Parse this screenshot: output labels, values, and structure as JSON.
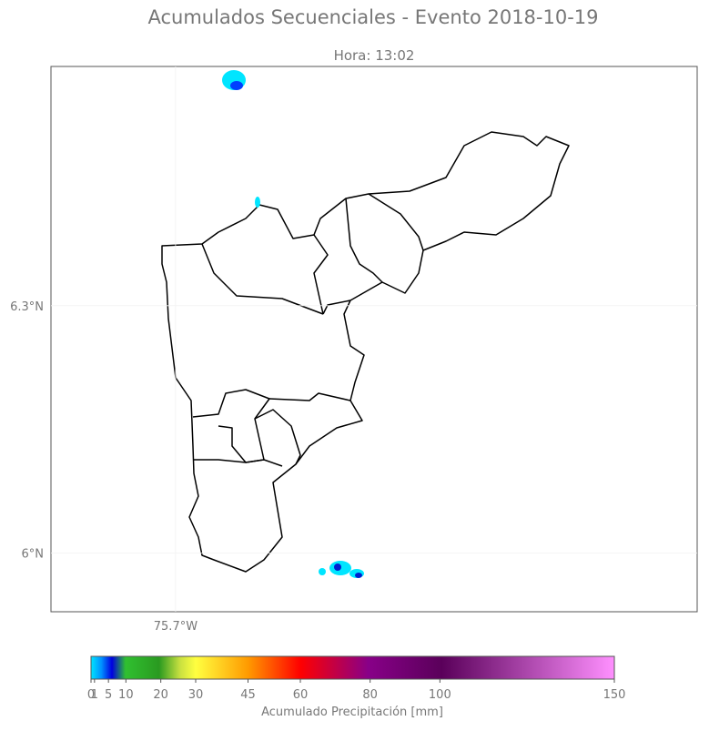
{
  "title": "Acumulados Secuenciales - Evento 2018-10-19",
  "subtitle": "Hora: 13:02",
  "map": {
    "xlim": [
      -75.851,
      -75.068
    ],
    "ylim": [
      5.929,
      6.59
    ],
    "xticks": [
      {
        "value": -75.7,
        "label": "75.7°W"
      }
    ],
    "yticks": [
      {
        "value": 6.3,
        "label": "6.3°N"
      },
      {
        "value": 6.0,
        "label": "6°N"
      }
    ]
  },
  "colorbar": {
    "label": "Acumulado Precipitación [mm]",
    "clim": [
      0,
      150
    ],
    "ticks": [
      0,
      1,
      5,
      10,
      20,
      30,
      45,
      60,
      80,
      100,
      150
    ]
  }
}
